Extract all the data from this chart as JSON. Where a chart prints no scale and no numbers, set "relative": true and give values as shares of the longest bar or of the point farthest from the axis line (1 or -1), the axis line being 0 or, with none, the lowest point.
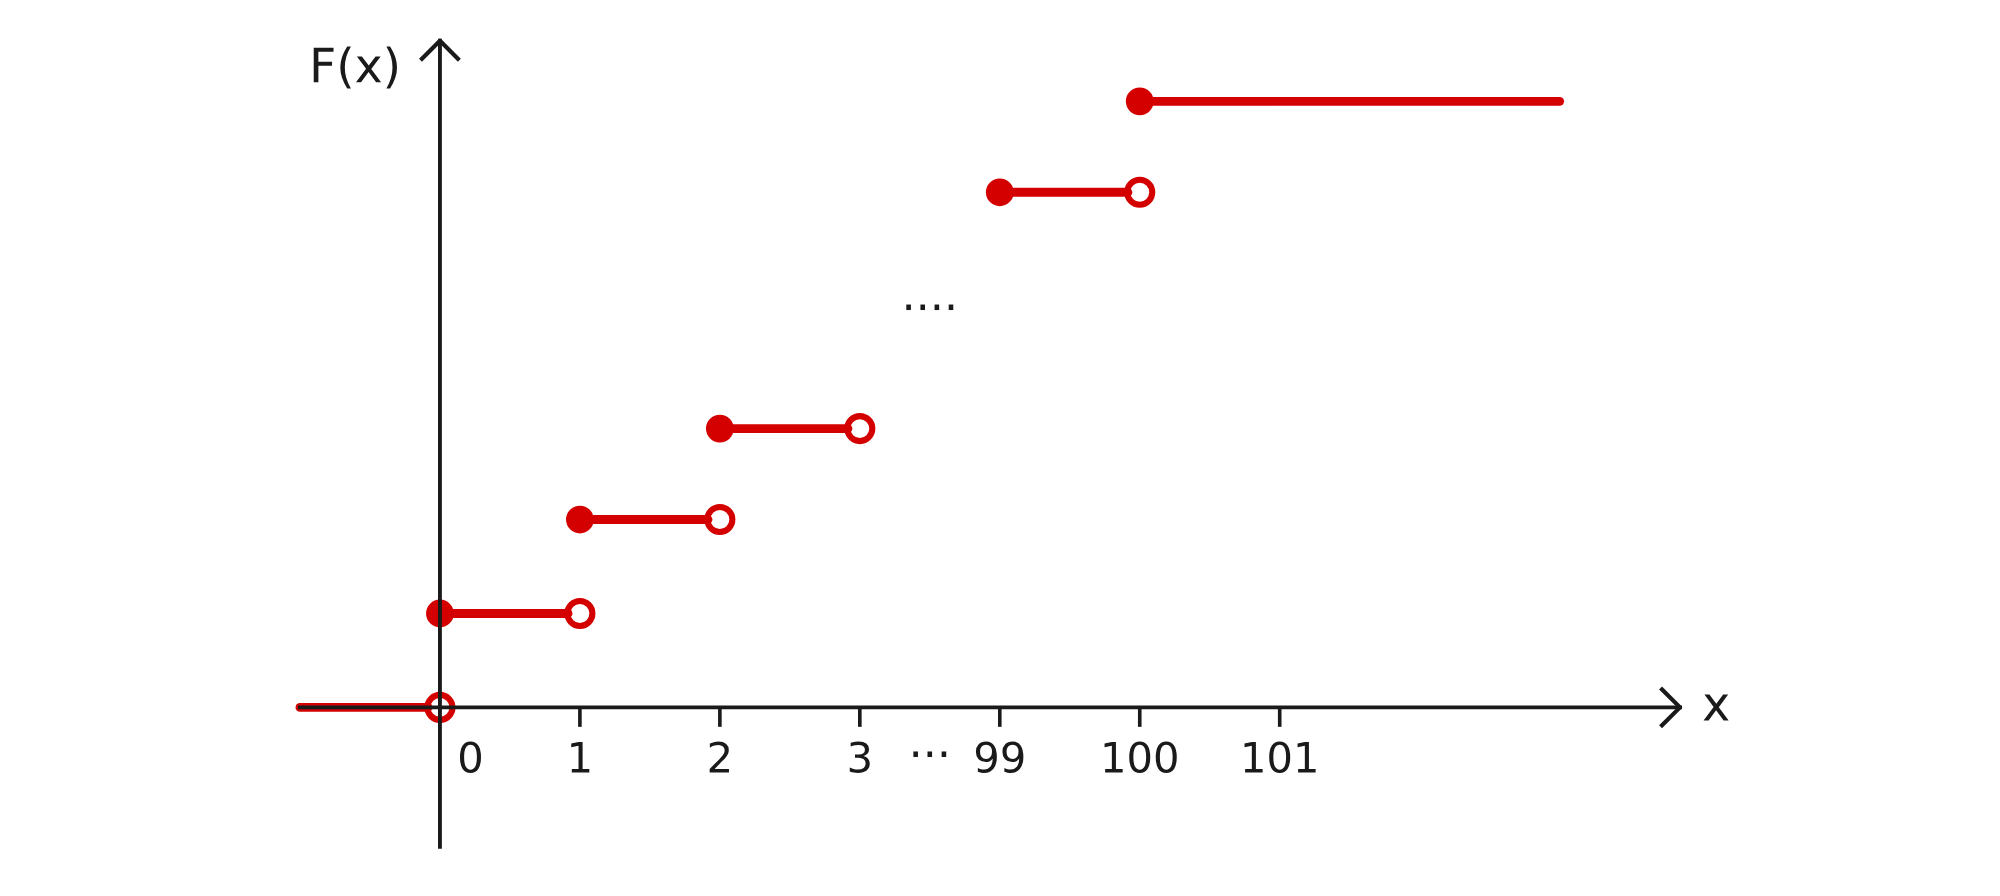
{
  "chart_data": {
    "type": "step",
    "relative": true,
    "xlabel": "x",
    "ylabel": "F(x)",
    "marker": "circle",
    "categories": [
      null,
      "0",
      "1",
      "2",
      "3",
      "99",
      "100",
      "101",
      null,
      null
    ],
    "series": [
      {
        "color": "#d40000",
        "values": [
          0,
          0.155,
          0.31,
          0.46,
          null,
          0.85,
          1,
          1,
          1,
          1
        ]
      }
    ],
    "annotations": [
      "····",
      "···"
    ]
  }
}
